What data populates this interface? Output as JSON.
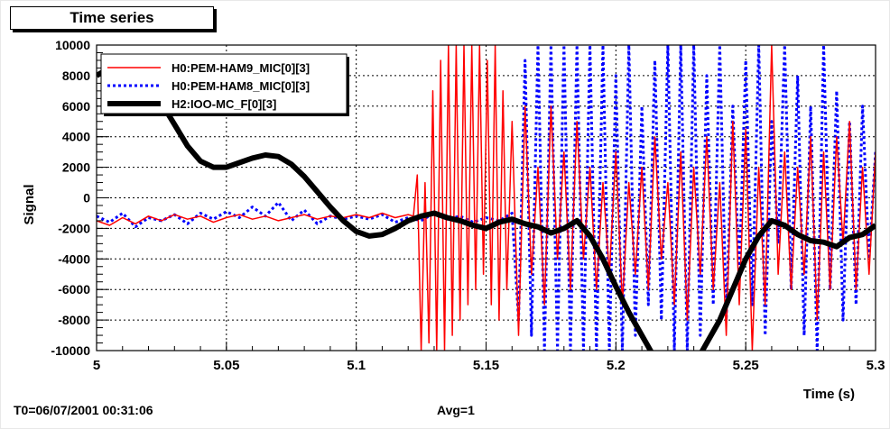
{
  "plot_title": "Time series",
  "footer": {
    "t0": "T0=06/07/2001 00:31:06",
    "avg": "Avg=1"
  },
  "chart_data": {
    "type": "line",
    "xlabel": "Time (s)",
    "ylabel": "Signal",
    "xlim": [
      5,
      5.3
    ],
    "ylim": [
      -10000,
      10000
    ],
    "x_ticks": [
      "5",
      "5.05",
      "5.1",
      "5.15",
      "5.2",
      "5.25",
      "5.3"
    ],
    "y_ticks": [
      "-10000",
      "-8000",
      "-6000",
      "-4000",
      "-2000",
      "0",
      "2000",
      "4000",
      "6000",
      "8000",
      "10000"
    ],
    "grid": true,
    "legend_position": "top-left",
    "series": [
      {
        "name": "H0:PEM-HAM9_MIC[0][3]",
        "color": "#ff0000",
        "style": "solid",
        "x": [
          5.0,
          5.005,
          5.01,
          5.015,
          5.02,
          5.025,
          5.03,
          5.035,
          5.04,
          5.045,
          5.05,
          5.055,
          5.06,
          5.065,
          5.07,
          5.075,
          5.08,
          5.085,
          5.09,
          5.095,
          5.1,
          5.105,
          5.11,
          5.115,
          5.12,
          5.122,
          5.1235,
          5.125,
          5.1265,
          5.128,
          5.1295,
          5.131,
          5.1325,
          5.134,
          5.1355,
          5.137,
          5.1385,
          5.14,
          5.1415,
          5.143,
          5.1445,
          5.146,
          5.1475,
          5.149,
          5.1505,
          5.152,
          5.1535,
          5.155,
          5.1565,
          5.158,
          5.16,
          5.1625,
          5.165,
          5.1675,
          5.17,
          5.1725,
          5.175,
          5.1775,
          5.18,
          5.1825,
          5.185,
          5.1875,
          5.19,
          5.1925,
          5.195,
          5.1975,
          5.2,
          5.2025,
          5.205,
          5.2075,
          5.21,
          5.2125,
          5.215,
          5.2175,
          5.22,
          5.2225,
          5.225,
          5.2275,
          5.23,
          5.2325,
          5.235,
          5.2375,
          5.24,
          5.2425,
          5.245,
          5.2475,
          5.25,
          5.2525,
          5.255,
          5.2575,
          5.26,
          5.2625,
          5.265,
          5.2675,
          5.27,
          5.2725,
          5.275,
          5.2775,
          5.28,
          5.2825,
          5.285,
          5.2875,
          5.29,
          5.2925,
          5.295,
          5.2975,
          5.3
        ],
        "y": [
          -1500,
          -1800,
          -1300,
          -1700,
          -1200,
          -1500,
          -1100,
          -1400,
          -1200,
          -1600,
          -1300,
          -1100,
          -1400,
          -1200,
          -1500,
          -1300,
          -1100,
          -1400,
          -1200,
          -1300,
          -1100,
          -1300,
          -1000,
          -1300,
          -1100,
          -1200,
          1500,
          -10000,
          1000,
          -9500,
          7000,
          -10000,
          9000,
          -10000,
          10000,
          -9000,
          10000,
          -8000,
          10000,
          -7000,
          10000,
          -6000,
          10000,
          -5000,
          9000,
          -7000,
          10000,
          -8000,
          7000,
          -6000,
          5000,
          -9000,
          6000,
          -5000,
          2000,
          -7000,
          6000,
          -4000,
          3000,
          -6000,
          5000,
          -4000,
          2000,
          -6000,
          1000,
          -5000,
          3000,
          -7000,
          1000,
          -5000,
          2000,
          -6000,
          4000,
          -4000,
          1000,
          -7000,
          3000,
          -8000,
          2000,
          -5000,
          4000,
          -6000,
          1000,
          -9000,
          5000,
          -7000,
          4500,
          -10000,
          2000,
          -7000,
          10000,
          -5000,
          3000,
          -6000,
          2000,
          -5000,
          4000,
          -8000,
          3000,
          -6000,
          4000,
          -3000,
          5000,
          -6000,
          2000,
          -5000,
          3000
        ]
      },
      {
        "name": "H0:PEM-HAM8_MIC[0][3]",
        "color": "#0000ff",
        "style": "dotted",
        "x": [
          5.0,
          5.005,
          5.01,
          5.015,
          5.02,
          5.025,
          5.03,
          5.035,
          5.04,
          5.045,
          5.05,
          5.055,
          5.06,
          5.065,
          5.07,
          5.075,
          5.08,
          5.085,
          5.09,
          5.095,
          5.1,
          5.105,
          5.11,
          5.115,
          5.12,
          5.125,
          5.13,
          5.135,
          5.14,
          5.145,
          5.15,
          5.155,
          5.16,
          5.1625,
          5.165,
          5.1675,
          5.17,
          5.1725,
          5.175,
          5.1775,
          5.18,
          5.1825,
          5.185,
          5.1875,
          5.19,
          5.1925,
          5.195,
          5.1975,
          5.2,
          5.2025,
          5.205,
          5.2075,
          5.21,
          5.2125,
          5.215,
          5.2175,
          5.22,
          5.2225,
          5.225,
          5.2275,
          5.23,
          5.2325,
          5.235,
          5.2375,
          5.24,
          5.2425,
          5.245,
          5.2475,
          5.25,
          5.2525,
          5.255,
          5.2575,
          5.26,
          5.2625,
          5.265,
          5.2675,
          5.27,
          5.2725,
          5.275,
          5.2775,
          5.28,
          5.2825,
          5.285,
          5.2875,
          5.29,
          5.2925,
          5.295,
          5.2975,
          5.3
        ],
        "y": [
          -1200,
          -1600,
          -1000,
          -1900,
          -1300,
          -1500,
          -1100,
          -1700,
          -1000,
          -1400,
          -900,
          -1300,
          -600,
          -1200,
          -300,
          -1500,
          -800,
          -1700,
          -1200,
          -1400,
          -1200,
          -1400,
          -1100,
          -1600,
          -1300,
          -1500,
          -1000,
          -1400,
          -1200,
          -1600,
          -1300,
          -1500,
          -1000,
          -8000,
          9000,
          -9000,
          10000,
          -10000,
          10000,
          -10000,
          10000,
          -10000,
          10000,
          -10000,
          10000,
          -10000,
          10000,
          -10000,
          8000,
          -10000,
          10000,
          -9000,
          6000,
          -7000,
          9000,
          -8000,
          10000,
          -10000,
          10000,
          -10000,
          10000,
          -9000,
          8000,
          -7000,
          10000,
          -8000,
          6000,
          -5000,
          9000,
          -7000,
          10000,
          -9000,
          5000,
          -3000,
          10000,
          -6000,
          8000,
          -9000,
          6000,
          -10000,
          10000,
          -6000,
          7000,
          -8000,
          5000,
          -7000,
          6000,
          -4000,
          3000
        ]
      },
      {
        "name": "H2:IOO-MC_F[0][3]",
        "color": "#000000",
        "style": "solid",
        "x": [
          5.0,
          5.005,
          5.01,
          5.015,
          5.02,
          5.025,
          5.03,
          5.035,
          5.04,
          5.045,
          5.05,
          5.055,
          5.06,
          5.065,
          5.07,
          5.075,
          5.08,
          5.085,
          5.09,
          5.095,
          5.1,
          5.105,
          5.11,
          5.115,
          5.12,
          5.125,
          5.13,
          5.135,
          5.14,
          5.145,
          5.15,
          5.155,
          5.16,
          5.165,
          5.17,
          5.175,
          5.18,
          5.185,
          5.19,
          5.195,
          5.2,
          5.205,
          5.21,
          5.215,
          5.22,
          5.225,
          5.23,
          5.235,
          5.24,
          5.245,
          5.25,
          5.255,
          5.26,
          5.265,
          5.27,
          5.275,
          5.28,
          5.285,
          5.29,
          5.295,
          5.3
        ],
        "y": [
          8000,
          8500,
          8800,
          8300,
          7500,
          6200,
          4800,
          3400,
          2400,
          2000,
          2000,
          2300,
          2600,
          2800,
          2700,
          2200,
          1400,
          400,
          -600,
          -1500,
          -2200,
          -2500,
          -2400,
          -2000,
          -1500,
          -1200,
          -1000,
          -1300,
          -1500,
          -1800,
          -2000,
          -1600,
          -1400,
          -1700,
          -1900,
          -2300,
          -2000,
          -1500,
          -2500,
          -4000,
          -5800,
          -7500,
          -9000,
          -10500,
          -12000,
          -11500,
          -11000,
          -9500,
          -8000,
          -6000,
          -4000,
          -2500,
          -1500,
          -1800,
          -2400,
          -2800,
          -2900,
          -3200,
          -2600,
          -2400,
          -1800
        ]
      }
    ]
  }
}
